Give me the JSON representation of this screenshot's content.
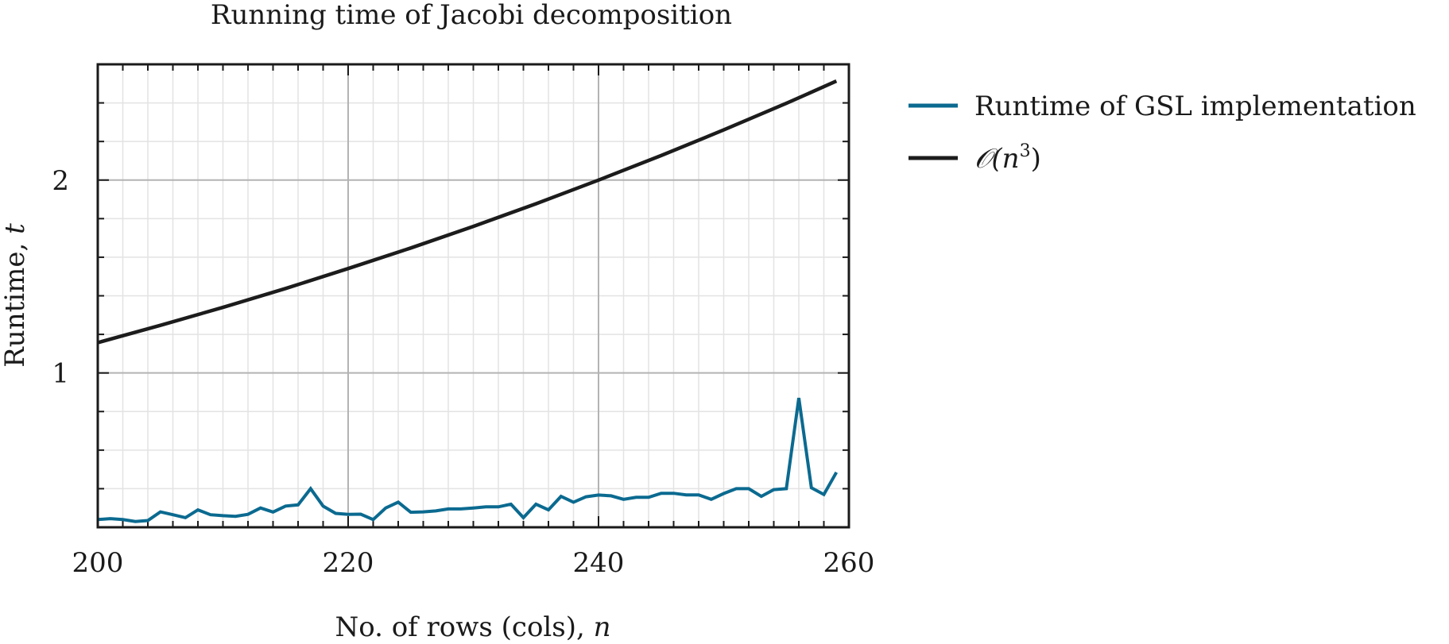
{
  "chart_data": {
    "type": "line",
    "title": "Running time of Jacobi decomposition",
    "xlabel": "No. of rows (cols), n",
    "ylabel": "Runtime, t",
    "xlim": [
      200,
      260
    ],
    "ylim": [
      0.2,
      2.6
    ],
    "x_ticks": [
      200,
      220,
      240,
      260
    ],
    "x_tick_labels": [
      "200",
      "220",
      "240",
      "260"
    ],
    "y_ticks": [
      1,
      2
    ],
    "y_tick_labels": [
      "1",
      "2"
    ],
    "x_minor_step": 2,
    "y_minor_step": 0.2,
    "grid": true,
    "legend_position": "outside-right",
    "colors": {
      "gsl": "#0b6a90",
      "cubic": "#1c1c1c",
      "major_grid": "#b3b3b3",
      "minor_grid": "#e3e3e3"
    },
    "series": [
      {
        "name": "Runtime of GSL implementation",
        "color_key": "gsl",
        "x": [
          200,
          201,
          202,
          203,
          204,
          205,
          206,
          207,
          208,
          209,
          210,
          211,
          212,
          213,
          214,
          215,
          216,
          217,
          218,
          219,
          220,
          221,
          222,
          223,
          224,
          225,
          226,
          227,
          228,
          229,
          230,
          231,
          232,
          233,
          234,
          235,
          236,
          237,
          238,
          239,
          240,
          241,
          242,
          243,
          244,
          245,
          246,
          247,
          248,
          249,
          250,
          251,
          252,
          253,
          254,
          255,
          256,
          257,
          258,
          259
        ],
        "y": [
          0.24,
          0.245,
          0.24,
          0.23,
          0.235,
          0.28,
          0.265,
          0.25,
          0.29,
          0.265,
          0.26,
          0.257,
          0.267,
          0.3,
          0.279,
          0.31,
          0.316,
          0.4,
          0.31,
          0.272,
          0.267,
          0.268,
          0.24,
          0.3,
          0.33,
          0.278,
          0.28,
          0.285,
          0.295,
          0.295,
          0.3,
          0.306,
          0.306,
          0.32,
          0.25,
          0.32,
          0.29,
          0.36,
          0.33,
          0.358,
          0.367,
          0.363,
          0.345,
          0.355,
          0.355,
          0.376,
          0.376,
          0.368,
          0.368,
          0.345,
          0.375,
          0.4,
          0.4,
          0.36,
          0.395,
          0.4,
          0.87,
          0.405,
          0.37,
          0.485
        ]
      },
      {
        "name": "O(n^3)",
        "label_main": "𝒪(n",
        "label_sup": "3",
        "label_end": ")",
        "color_key": "cubic",
        "x": [
          200,
          205,
          210,
          215,
          220,
          225,
          230,
          235,
          240,
          245,
          250,
          255,
          259
        ],
        "y": [
          1.157,
          1.247,
          1.34,
          1.438,
          1.541,
          1.648,
          1.76,
          1.877,
          2.0,
          2.127,
          2.26,
          2.398,
          2.513
        ]
      }
    ]
  }
}
